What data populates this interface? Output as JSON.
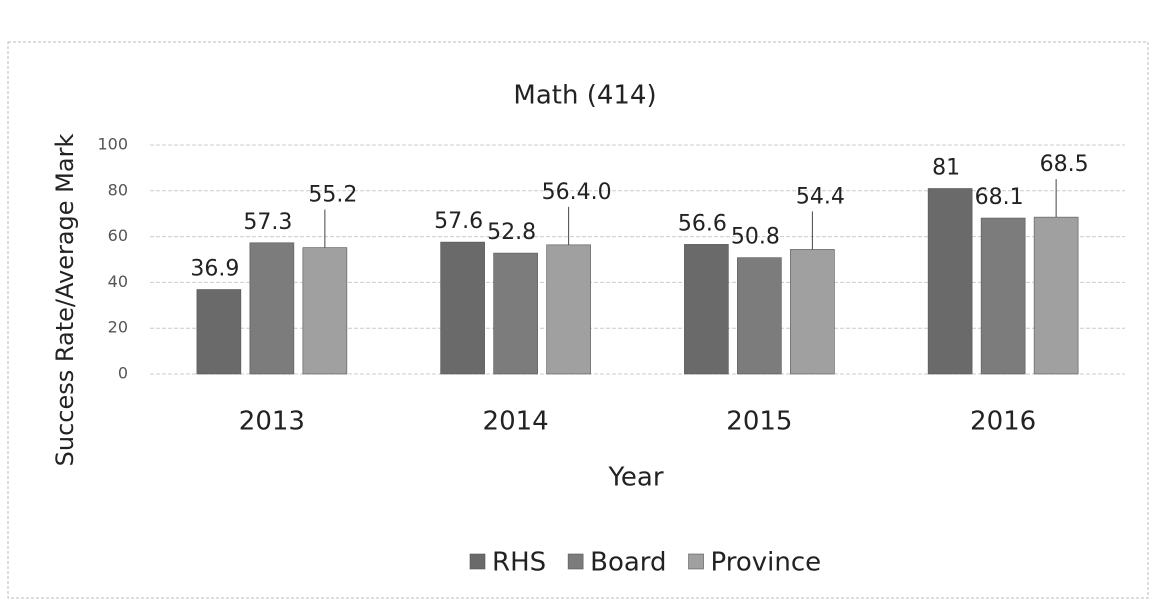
{
  "chart_data": {
    "type": "bar",
    "title": "Math (414)",
    "x_label": "Year",
    "y_label": "Success  Rate/Average Mark",
    "categories": [
      "2013",
      "2014",
      "2015",
      "2016"
    ],
    "series": [
      {
        "name": "RHS",
        "color": "#6a6a6a",
        "values": [
          36.9,
          57.6,
          56.6,
          81
        ]
      },
      {
        "name": "Board",
        "color": "#7c7c7c",
        "values": [
          57.3,
          52.8,
          50.8,
          68.1
        ]
      },
      {
        "name": "Province",
        "color": "#a0a0a0",
        "values": [
          55.2,
          56.4,
          54.4,
          68.5
        ],
        "value_labels": [
          "55.2",
          "56.4.0",
          "54.4",
          "68.5"
        ]
      }
    ],
    "ylim": [
      0,
      100
    ],
    "yticks": [
      0,
      20,
      40,
      60,
      80,
      100
    ],
    "grid": true,
    "legend": "bottom"
  }
}
